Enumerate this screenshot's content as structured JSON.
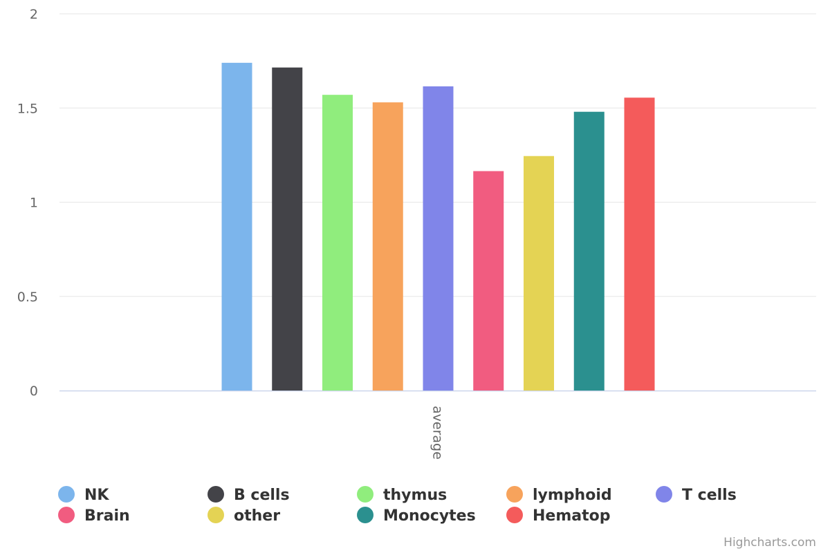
{
  "chart_data": {
    "type": "bar",
    "categories": [
      "average"
    ],
    "ylim": [
      0,
      2
    ],
    "yticks": [
      0,
      0.5,
      1,
      1.5,
      2
    ],
    "grid": true,
    "legend_position": "bottom",
    "series": [
      {
        "name": "NK",
        "values": [
          1.74
        ],
        "color": "#7cb5ec"
      },
      {
        "name": "B cells",
        "values": [
          1.715
        ],
        "color": "#434348"
      },
      {
        "name": "thymus",
        "values": [
          1.57
        ],
        "color": "#90ed7d"
      },
      {
        "name": "lymphoid",
        "values": [
          1.53
        ],
        "color": "#f7a35c"
      },
      {
        "name": "T cells",
        "values": [
          1.615
        ],
        "color": "#8085e9"
      },
      {
        "name": "Brain",
        "values": [
          1.165
        ],
        "color": "#f15c80"
      },
      {
        "name": "other",
        "values": [
          1.245
        ],
        "color": "#e4d354"
      },
      {
        "name": "Monocytes",
        "values": [
          1.48
        ],
        "color": "#2b908f"
      },
      {
        "name": "Hematop",
        "values": [
          1.555
        ],
        "color": "#f45b5b"
      }
    ]
  },
  "credits": "Highcharts.com"
}
